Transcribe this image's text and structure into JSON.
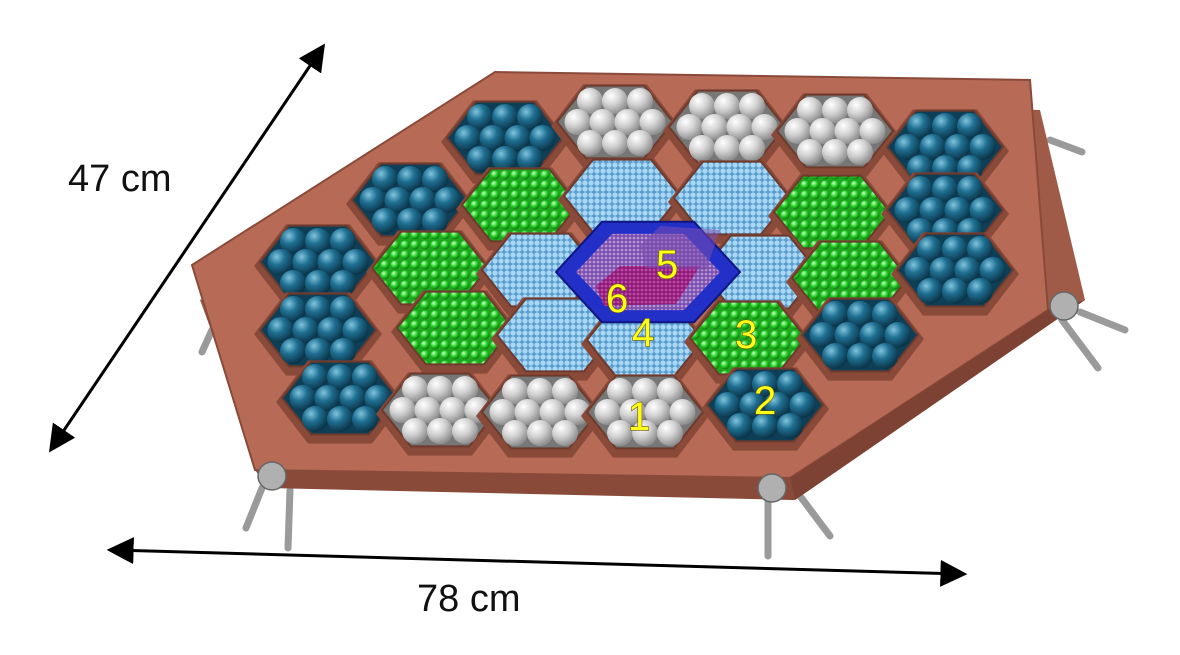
{
  "dimensions": {
    "height_label": "47 cm",
    "width_label": "78 cm"
  },
  "zones": [
    {
      "number": "1",
      "module_fill": "silver-sphere"
    },
    {
      "number": "2",
      "module_fill": "teal-sphere"
    },
    {
      "number": "3",
      "module_fill": "green-sphere"
    },
    {
      "number": "4",
      "module_fill": "lightblue-bead"
    },
    {
      "number": "5",
      "module_fill": "violet-mesh"
    },
    {
      "number": "6",
      "module_fill": "purple-mesh"
    }
  ],
  "colors": {
    "frame": "#b76a55",
    "frame_dark": "#8a4a3a",
    "teal": "#1d5f80",
    "silver": "#cfcfcf",
    "green": "#2ed62e",
    "light_blue": "#8ec8ee",
    "dark_blue": "#2230c8",
    "violet": "#8d5cb8",
    "purple": "#a9298f",
    "label_yellow": "#ffff1a"
  }
}
